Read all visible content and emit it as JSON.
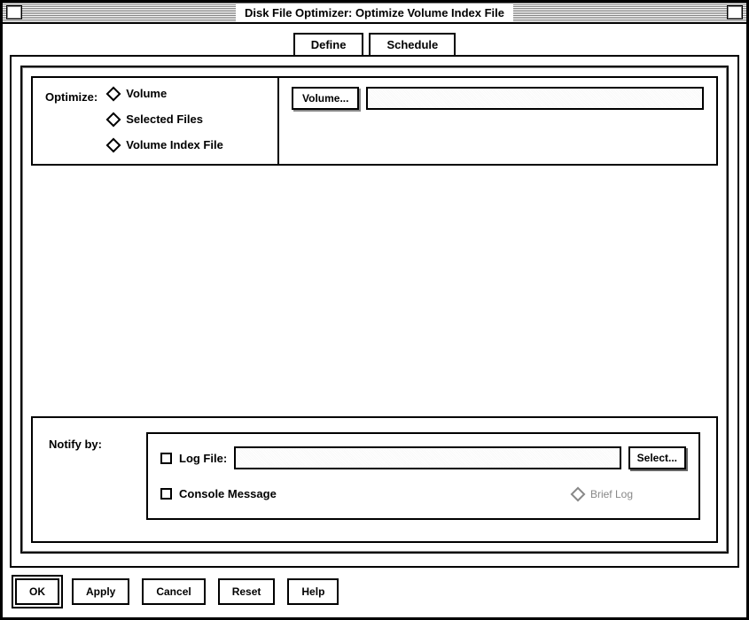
{
  "window": {
    "title": "Disk File Optimizer: Optimize Volume Index File"
  },
  "tabs": {
    "define": "Define",
    "schedule": "Schedule"
  },
  "optimize": {
    "label": "Optimize:",
    "options": {
      "volume": "Volume",
      "selected_files": "Selected Files",
      "volume_index_file": "Volume Index File"
    },
    "volume_button": "Volume...",
    "volume_value": ""
  },
  "notify": {
    "label": "Notify by:",
    "log_file_label": "Log File:",
    "log_file_value": "",
    "select_button": "Select...",
    "console_message": "Console Message",
    "brief_log": "Brief Log"
  },
  "buttons": {
    "ok": "OK",
    "apply": "Apply",
    "cancel": "Cancel",
    "reset": "Reset",
    "help": "Help"
  },
  "colors": {
    "border": "#000000",
    "background": "#ffffff",
    "disabled": "#888888"
  }
}
